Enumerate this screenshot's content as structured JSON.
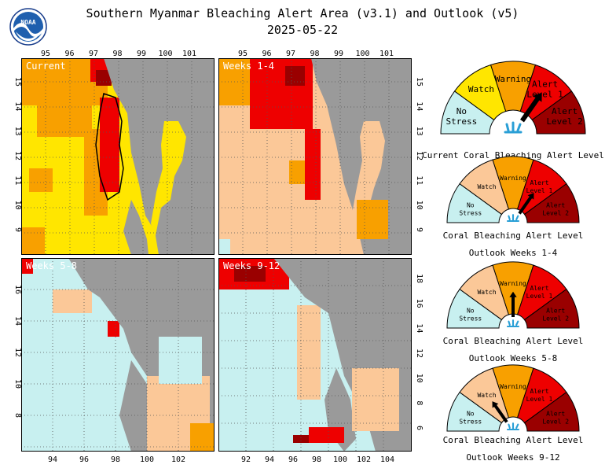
{
  "header": {
    "title": "Southern Myanmar Bleaching Alert Area (v3.1) and Outlook (v5)",
    "date": "2025-05-22",
    "logo_text": "NOAA"
  },
  "panels": [
    {
      "label": "Current",
      "top_lon_ticks": [
        "95",
        "96",
        "97",
        "98",
        "99",
        "100",
        "101"
      ],
      "left_lat_ticks": [
        "15",
        "14",
        "13",
        "12",
        "11",
        "10",
        "9"
      ]
    },
    {
      "label": "Weeks 1-4",
      "top_lon_ticks": [
        "95",
        "96",
        "97",
        "98",
        "99",
        "100",
        "101"
      ],
      "right_lat_ticks": [
        "15",
        "14",
        "13",
        "12",
        "11",
        "10",
        "9"
      ]
    },
    {
      "label": "Weeks 5-8",
      "bottom_lon_ticks": [
        "94",
        "96",
        "98",
        "100",
        "102"
      ],
      "left_lat_ticks": [
        "16",
        "14",
        "12",
        "10",
        "8"
      ]
    },
    {
      "label": "Weeks 9-12",
      "bottom_lon_ticks": [
        "92",
        "94",
        "96",
        "98",
        "100",
        "102",
        "104"
      ],
      "right_lat_ticks": [
        "18",
        "16",
        "14",
        "12",
        "10",
        "8",
        "6"
      ]
    }
  ],
  "gauge_levels": {
    "no_stress": [
      "No",
      "Stress"
    ],
    "watch": "Watch",
    "warning": "Warning",
    "alert1": [
      "Alert",
      "Level 1"
    ],
    "alert2": [
      "Alert",
      "Level 2"
    ]
  },
  "gauges": [
    {
      "caption": [
        "Current Coral Bleaching Alert Level"
      ],
      "level": "Alert Level 1"
    },
    {
      "caption": [
        "Coral Bleaching Alert Level",
        "Outlook Weeks 1-4"
      ],
      "level": "Alert Level 1"
    },
    {
      "caption": [
        "Coral Bleaching Alert Level",
        "Outlook Weeks 5-8"
      ],
      "level": "Warning"
    },
    {
      "caption": [
        "Coral Bleaching Alert Level",
        "Outlook Weeks 9-12"
      ],
      "level": "Watch"
    }
  ],
  "colors": {
    "no_stress": "#c8f0f0",
    "watch": "#ffe600",
    "warning": "#f8a000",
    "alert1": "#ee0000",
    "alert2": "#9a0000",
    "watch_outlook": "#fbc898",
    "land": "#9a9a9a"
  }
}
